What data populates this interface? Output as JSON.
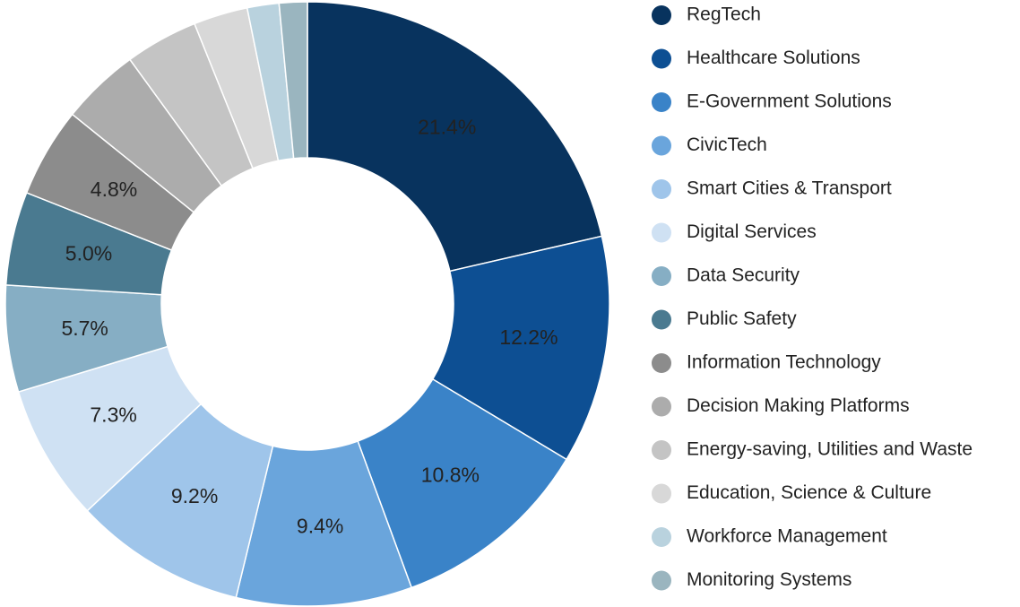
{
  "chart_data": {
    "type": "donut",
    "categories": [
      "RegTech",
      "Healthcare Solutions",
      "E-Government Solutions",
      "CivicTech",
      "Smart Cities & Transport",
      "Digital Services",
      "Data Security",
      "Public Safety",
      "Information Technology",
      "Decision Making Platforms",
      "Energy-saving, Utilities and Waste",
      "Education, Science & Culture",
      "Workforce Management",
      "Monitoring Systems"
    ],
    "values": [
      21.4,
      12.2,
      10.8,
      9.4,
      9.2,
      7.3,
      5.7,
      5.0,
      4.8,
      4.2,
      3.9,
      2.9,
      1.7,
      1.5
    ],
    "value_labels": [
      "21.4%",
      "12.2%",
      "10.8%",
      "9.4%",
      "9.2%",
      "7.3%",
      "5.7%",
      "5.0%",
      "4.8%",
      null,
      null,
      null,
      null,
      null
    ],
    "colors": [
      "#08335e",
      "#0d4f93",
      "#3a83c8",
      "#6aa5dc",
      "#9fc5ea",
      "#cfe1f3",
      "#86aec4",
      "#4a7a90",
      "#8c8c8c",
      "#acacac",
      "#c4c4c4",
      "#d8d8d8",
      "#b9d2de",
      "#9ab5bf"
    ]
  }
}
